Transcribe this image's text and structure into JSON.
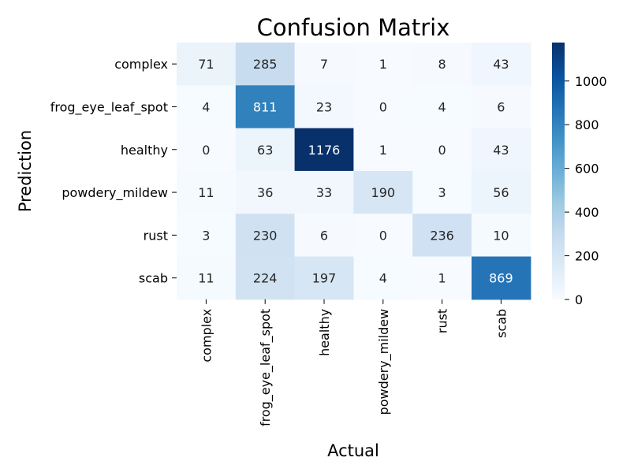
{
  "chart_data": {
    "type": "heatmap",
    "title": "Confusion Matrix",
    "xlabel": "Actual",
    "ylabel": "Prediction",
    "x_categories": [
      "complex",
      "frog_eye_leaf_spot",
      "healthy",
      "powdery_mildew",
      "rust",
      "scab"
    ],
    "y_categories": [
      "complex",
      "frog_eye_leaf_spot",
      "healthy",
      "powdery_mildew",
      "rust",
      "scab"
    ],
    "values": [
      [
        71,
        285,
        7,
        1,
        8,
        43
      ],
      [
        4,
        811,
        23,
        0,
        4,
        6
      ],
      [
        0,
        63,
        1176,
        1,
        0,
        43
      ],
      [
        11,
        36,
        33,
        190,
        3,
        56
      ],
      [
        3,
        230,
        6,
        0,
        236,
        10
      ],
      [
        11,
        224,
        197,
        4,
        1,
        869
      ]
    ],
    "colormap": "Blues",
    "colorbar": {
      "min": 0,
      "max": 1176,
      "ticks": [
        0,
        200,
        400,
        600,
        800,
        1000
      ]
    },
    "grid": false,
    "legend": "colorbar-right"
  }
}
